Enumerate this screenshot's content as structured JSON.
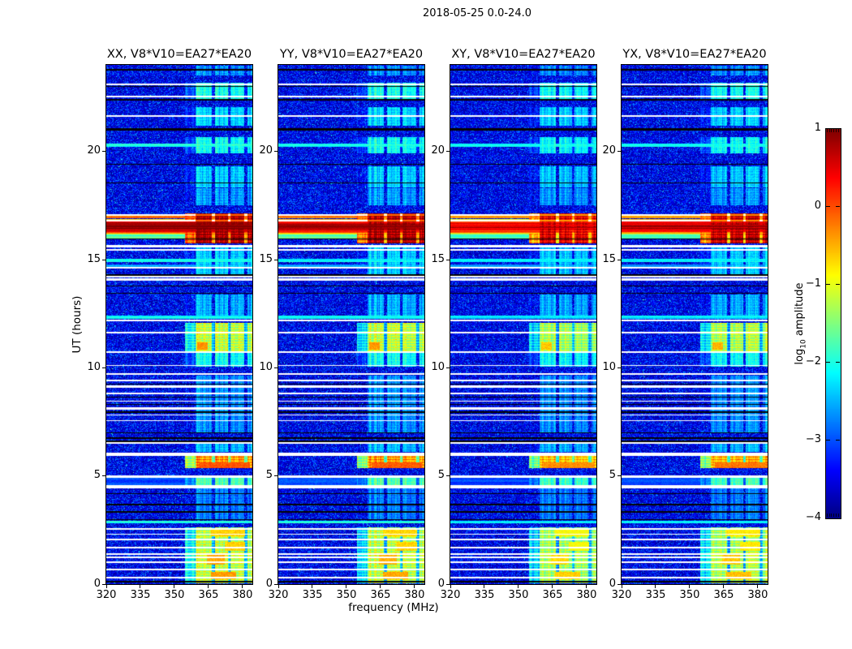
{
  "title": "2018-05-25 0.0-24.0",
  "xlabel": "frequency (MHz)",
  "ylabel": "UT (hours)",
  "colorbar": {
    "label_prefix": "log",
    "label_sub": "10",
    "label_suffix": " amplitude",
    "ticks": [
      1,
      0,
      -1,
      -2,
      -3,
      -4
    ],
    "vmin": -4,
    "vmax": 1,
    "colormap": "jet"
  },
  "chart_data": {
    "type": "heatmap",
    "description": "Dynamic spectra (time vs frequency) of four correlation products for one baseline; jet colormap of log10 amplitude from -4 to 1",
    "panels": [
      {
        "title": "XX, V8*V10=EA27*EA20",
        "scale": 1.0,
        "seed": 11
      },
      {
        "title": "YY, V8*V10=EA27*EA20",
        "scale": 0.99,
        "seed": 47
      },
      {
        "title": "XY, V8*V10=EA27*EA20",
        "scale": 0.92,
        "seed": 83
      },
      {
        "title": "YX, V8*V10=EA27*EA20",
        "scale": 0.95,
        "seed": 29
      }
    ],
    "x_axis": {
      "label": "frequency (MHz)",
      "min": 320,
      "max": 384.3,
      "ticks": [
        320,
        335,
        350,
        365,
        380
      ]
    },
    "y_axis": {
      "label": "UT (hours)",
      "min": 0,
      "max": 24,
      "ticks": [
        0,
        5,
        10,
        15,
        20
      ]
    },
    "background": {
      "base": -3.82,
      "var": 1.2
    },
    "rfi_band": {
      "f0_mhz": 359.0,
      "f1_mhz": 384.3,
      "sub_gaps_mhz": [
        366.9,
        374.0,
        381.2
      ],
      "gap_width_mhz": 1.3,
      "secondary_f0_mhz": 354.3,
      "secondary_drop": 1.05
    },
    "rfi_windows": [
      [
        0.05,
        2.62,
        -1.15
      ],
      [
        3.0,
        4.45,
        -2.75
      ],
      [
        4.55,
        4.95,
        -1.7
      ],
      [
        5.35,
        5.97,
        -0.35
      ],
      [
        6.1,
        6.55,
        -2.45
      ],
      [
        7.0,
        9.65,
        -2.65
      ],
      [
        10.05,
        10.75,
        -2.05
      ],
      [
        10.78,
        12.08,
        -1.15
      ],
      [
        12.3,
        13.4,
        -2.5
      ],
      [
        14.3,
        15.65,
        -2.35
      ],
      [
        15.75,
        17.12,
        0.85
      ],
      [
        17.5,
        18.3,
        -2.6
      ],
      [
        18.35,
        19.3,
        -2.35
      ],
      [
        19.9,
        20.65,
        -2.05
      ],
      [
        21.2,
        22.05,
        -2.3
      ],
      [
        22.4,
        23.18,
        -2.0
      ],
      [
        23.5,
        23.95,
        -2.65
      ]
    ],
    "burst": {
      "t0": 16.18,
      "t1": 16.88,
      "peak": 1.0,
      "edge": -1.1
    },
    "band_events": [
      {
        "t0": 15.98,
        "t1": 16.18,
        "level": -1.7
      },
      {
        "t0": 16.93,
        "t1": 17.01,
        "level": -0.15
      },
      {
        "t0": 20.2,
        "t1": 20.38,
        "level": -2.0
      },
      {
        "t0": 12.28,
        "t1": 12.42,
        "level": -2.1
      },
      {
        "t0": 2.8,
        "t1": 2.94,
        "level": -2.0
      },
      {
        "t0": 14.9,
        "t1": 15.04,
        "level": -2.1
      },
      {
        "t0": 14.68,
        "t1": 14.78,
        "level": -2.6
      },
      {
        "t0": 4.55,
        "t1": 4.95,
        "level": -3.0
      }
    ],
    "hot_spots": [
      {
        "t0": 10.82,
        "t1": 11.18,
        "f0": 360,
        "f1": 364.5,
        "dv": 0.8
      },
      {
        "t0": 0.22,
        "t1": 0.58,
        "f0": 366,
        "f1": 377,
        "dv": 0.75
      },
      {
        "t0": 0.9,
        "t1": 1.38,
        "f0": 364,
        "f1": 372,
        "dv": 0.7
      },
      {
        "t0": 2.2,
        "t1": 2.6,
        "f0": 366,
        "f1": 381,
        "dv": 0.5
      },
      {
        "t0": 1.55,
        "t1": 1.95,
        "f0": 372,
        "f1": 381,
        "dv": 0.5
      },
      {
        "t0": 5.38,
        "t1": 5.62,
        "f0": 361,
        "f1": 383,
        "dv": 0.3
      }
    ],
    "white_gaps": [
      [
        0.3,
        0.08
      ],
      [
        0.69,
        0.08
      ],
      [
        1.0,
        0.08
      ],
      [
        1.24,
        0.06
      ],
      [
        1.38,
        0.06
      ],
      [
        1.69,
        0.08
      ],
      [
        2.06,
        0.08
      ],
      [
        2.31,
        0.06
      ],
      [
        2.56,
        0.08
      ],
      [
        4.5,
        0.12
      ],
      [
        4.97,
        0.08
      ],
      [
        6.0,
        0.14
      ],
      [
        6.52,
        0.08
      ],
      [
        7.55,
        0.06
      ],
      [
        7.82,
        0.06
      ],
      [
        8.12,
        0.08
      ],
      [
        8.45,
        0.06
      ],
      [
        8.82,
        0.08
      ],
      [
        9.12,
        0.1
      ],
      [
        9.42,
        0.06
      ],
      [
        9.72,
        0.08
      ],
      [
        10.1,
        0.06
      ],
      [
        10.72,
        0.08
      ],
      [
        11.62,
        0.08
      ],
      [
        12.2,
        0.08
      ],
      [
        14.08,
        0.08
      ],
      [
        14.22,
        0.06
      ],
      [
        14.62,
        0.08
      ],
      [
        15.45,
        0.1
      ],
      [
        15.62,
        0.1
      ],
      [
        16.8,
        0.06
      ],
      [
        17.06,
        0.08
      ],
      [
        21.65,
        0.08
      ],
      [
        22.55,
        0.08
      ],
      [
        23.1,
        0.1
      ]
    ],
    "black_lines": [
      [
        0.12,
        0.08
      ],
      [
        2.98,
        0.06
      ],
      [
        3.34,
        0.06
      ],
      [
        3.68,
        0.06
      ],
      [
        4.18,
        0.06
      ],
      [
        6.6,
        0.06
      ],
      [
        6.75,
        0.06
      ],
      [
        7.0,
        0.06
      ],
      [
        7.95,
        0.06
      ],
      [
        8.3,
        0.06
      ],
      [
        8.65,
        0.06
      ],
      [
        9.25,
        0.06
      ],
      [
        13.45,
        0.06
      ],
      [
        13.78,
        0.06
      ],
      [
        14.3,
        0.08
      ],
      [
        15.95,
        0.05
      ],
      [
        18.55,
        0.06
      ],
      [
        19.4,
        0.06
      ],
      [
        21.02,
        0.08
      ],
      [
        22.38,
        0.08
      ],
      [
        23.0,
        0.06
      ],
      [
        23.78,
        0.08
      ]
    ]
  }
}
